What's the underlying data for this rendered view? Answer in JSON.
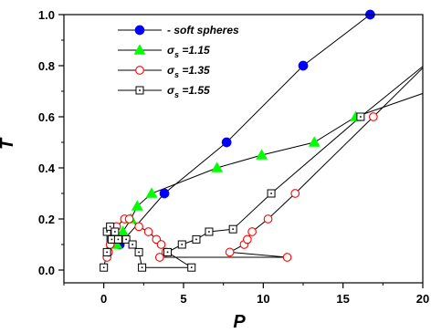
{
  "chart_data": {
    "type": "line",
    "xlabel": "P",
    "ylabel": "T",
    "xlim": [
      -2.5,
      20
    ],
    "ylim": [
      -0.05,
      1.0
    ],
    "x_ticks": [
      0,
      5,
      10,
      15,
      20
    ],
    "x_tick_labels": [
      "0",
      "5",
      "10",
      "15",
      "20"
    ],
    "y_ticks": [
      0.0,
      0.2,
      0.4,
      0.6,
      0.8,
      1.0
    ],
    "y_tick_labels": [
      "0.0",
      "0.2",
      "0.4",
      "0.6",
      "0.8",
      "1.0"
    ],
    "grid": false,
    "legend_position": "top-left",
    "series": [
      {
        "name": "- soft spheres",
        "name_main": "- soft spheres",
        "name_sub": "",
        "marker": "circle",
        "filled": true,
        "color": "#0000ff",
        "x": [
          1.0,
          3.8,
          7.7,
          12.5,
          16.7
        ],
        "y": [
          0.1,
          0.3,
          0.5,
          0.8,
          1.0
        ]
      },
      {
        "name": "σs =1.15",
        "name_main": "σ",
        "name_sub": "s",
        "name_rest": " =1.15",
        "marker": "triangle",
        "filled": true,
        "color": "#00ff00",
        "x": [
          0.8,
          1.2,
          1.7,
          2.1,
          3.0,
          7.1,
          9.9,
          13.2,
          15.8
        ],
        "y": [
          0.1,
          0.15,
          0.2,
          0.25,
          0.3,
          0.4,
          0.45,
          0.5,
          0.6
        ]
      },
      {
        "name": "σs =1.35",
        "name_main": "σ",
        "name_sub": "s",
        "name_rest": " =1.35",
        "marker": "circle",
        "filled": false,
        "color": "#ff0000",
        "x": [
          0.2,
          0.3,
          0.4,
          0.5,
          0.8,
          1.3,
          1.6,
          2.2,
          2.8,
          3.3,
          3.6,
          3.9,
          3.5,
          11.5,
          7.9,
          8.8,
          9.0,
          9.3,
          10.3,
          12.0,
          16.9
        ],
        "y": [
          0.05,
          0.07,
          0.1,
          0.12,
          0.17,
          0.2,
          0.2,
          0.17,
          0.15,
          0.12,
          0.1,
          0.07,
          0.05,
          0.05,
          0.07,
          0.1,
          0.12,
          0.15,
          0.2,
          0.3,
          0.6
        ]
      },
      {
        "name": "σs =1.55",
        "name_main": "σ",
        "name_sub": "s",
        "name_rest": " =1.55",
        "marker": "square",
        "filled": false,
        "color": "#000000",
        "x": [
          0.0,
          0.2,
          0.2,
          0.4,
          0.5,
          0.7,
          0.9,
          1.4,
          1.8,
          2.2,
          2.4,
          5.5,
          4.0,
          4.9,
          5.8,
          6.6,
          8.1,
          10.5,
          16.1
        ],
        "y": [
          0.01,
          0.07,
          0.15,
          0.17,
          0.12,
          0.15,
          0.12,
          0.12,
          0.1,
          0.07,
          0.01,
          0.01,
          0.07,
          0.1,
          0.12,
          0.15,
          0.16,
          0.3,
          0.6
        ]
      }
    ]
  }
}
